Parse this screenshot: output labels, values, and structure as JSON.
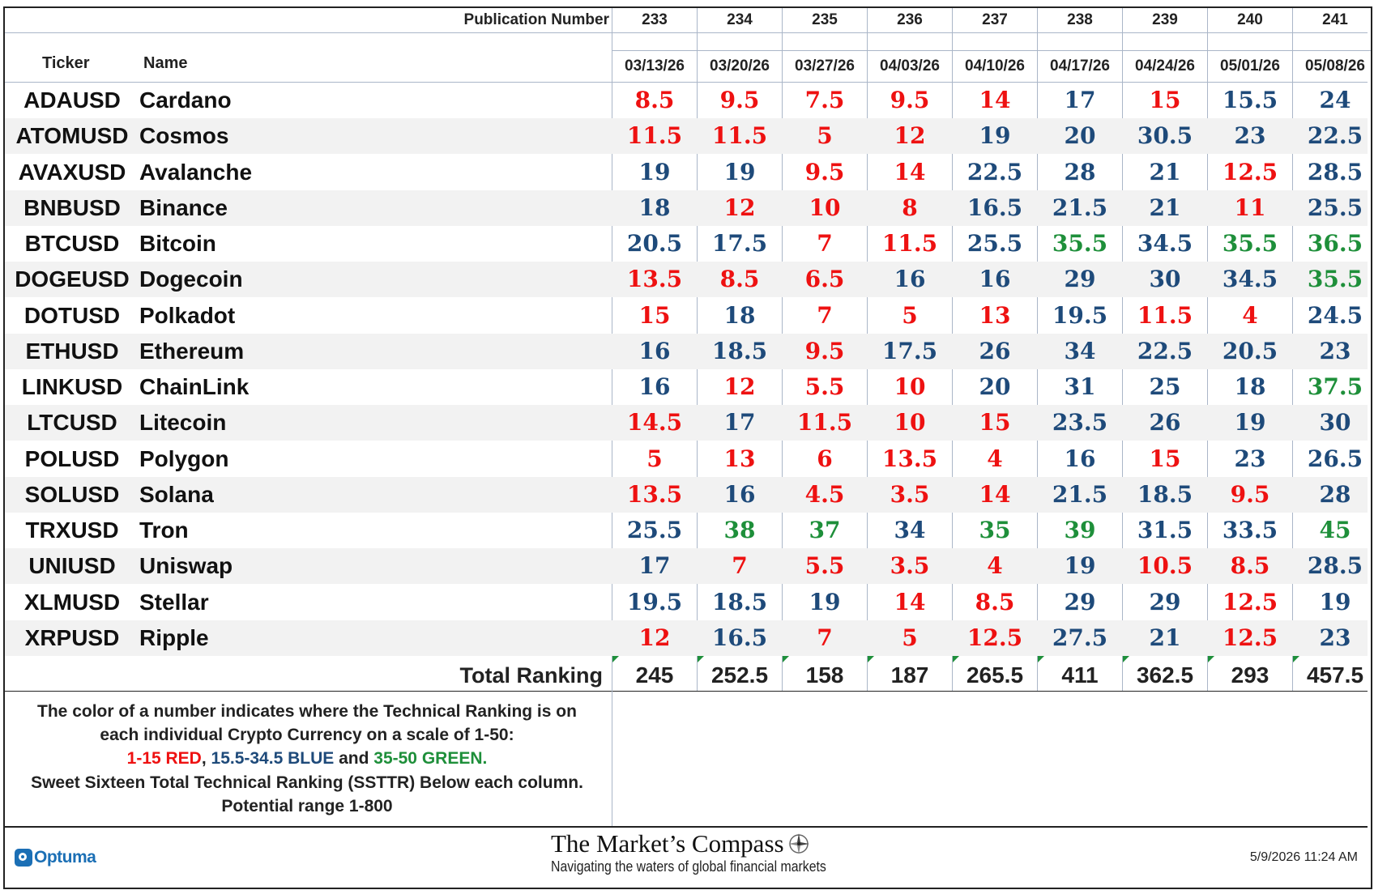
{
  "header": {
    "publication_label": "Publication Number",
    "ticker_label": "Ticker",
    "name_label": "Name",
    "publications": [
      "233",
      "234",
      "235",
      "236",
      "237",
      "238",
      "239",
      "240",
      "241"
    ],
    "dates": [
      "03/13/26",
      "03/20/26",
      "03/27/26",
      "04/03/26",
      "04/10/26",
      "04/17/26",
      "04/24/26",
      "05/01/26",
      "05/08/26"
    ]
  },
  "colors": {
    "red": "#ee1111",
    "blue": "#1e4a7a",
    "green": "#1e8f3a"
  },
  "rows": [
    {
      "ticker": "ADAUSD",
      "name": "Cardano",
      "values": [
        8.5,
        9.5,
        7.5,
        9.5,
        14,
        17,
        15,
        15.5,
        24
      ]
    },
    {
      "ticker": "ATOMUSD",
      "name": "Cosmos",
      "values": [
        11.5,
        11.5,
        5,
        12,
        19,
        20,
        30.5,
        23,
        22.5
      ]
    },
    {
      "ticker": "AVAXUSD",
      "name": "Avalanche",
      "values": [
        19,
        19,
        9.5,
        14,
        22.5,
        28,
        21,
        12.5,
        28.5
      ]
    },
    {
      "ticker": "BNBUSD",
      "name": "Binance",
      "values": [
        18,
        12,
        10,
        8,
        16.5,
        21.5,
        21,
        11,
        25.5
      ]
    },
    {
      "ticker": "BTCUSD",
      "name": "Bitcoin",
      "values": [
        20.5,
        17.5,
        7,
        11.5,
        25.5,
        35.5,
        34.5,
        35.5,
        36.5
      ]
    },
    {
      "ticker": "DOGEUSD",
      "name": "Dogecoin",
      "values": [
        13.5,
        8.5,
        6.5,
        16,
        16,
        29,
        30,
        34.5,
        35.5
      ]
    },
    {
      "ticker": "DOTUSD",
      "name": "Polkadot",
      "values": [
        15,
        18,
        7,
        5,
        13,
        19.5,
        11.5,
        4,
        24.5
      ]
    },
    {
      "ticker": "ETHUSD",
      "name": "Ethereum",
      "values": [
        16,
        18.5,
        9.5,
        17.5,
        26,
        34,
        22.5,
        20.5,
        23
      ]
    },
    {
      "ticker": "LINKUSD",
      "name": "ChainLink",
      "values": [
        16,
        12,
        5.5,
        10,
        20,
        31,
        25,
        18,
        37.5
      ]
    },
    {
      "ticker": "LTCUSD",
      "name": "Litecoin",
      "values": [
        14.5,
        17,
        11.5,
        10,
        15,
        23.5,
        26,
        19,
        30
      ]
    },
    {
      "ticker": "POLUSD",
      "name": "Polygon",
      "values": [
        5,
        13,
        6,
        13.5,
        4,
        16,
        15,
        23,
        26.5
      ]
    },
    {
      "ticker": "SOLUSD",
      "name": "Solana",
      "values": [
        13.5,
        16,
        4.5,
        3.5,
        14,
        21.5,
        18.5,
        9.5,
        28
      ]
    },
    {
      "ticker": "TRXUSD",
      "name": "Tron",
      "values": [
        25.5,
        38,
        37,
        34,
        35,
        39,
        31.5,
        33.5,
        45
      ]
    },
    {
      "ticker": "UNIUSD",
      "name": "Uniswap",
      "values": [
        17,
        7,
        5.5,
        3.5,
        4,
        19,
        10.5,
        8.5,
        28.5
      ]
    },
    {
      "ticker": "XLMUSD",
      "name": "Stellar",
      "values": [
        19.5,
        18.5,
        19,
        14,
        8.5,
        29,
        29,
        12.5,
        19
      ]
    },
    {
      "ticker": "XRPUSD",
      "name": "Ripple",
      "values": [
        12,
        16.5,
        7,
        5,
        12.5,
        27.5,
        21,
        12.5,
        23
      ]
    }
  ],
  "totals": {
    "label": "Total Ranking",
    "values": [
      "245",
      "252.5",
      "158",
      "187",
      "265.5",
      "411",
      "362.5",
      "293",
      "457.5"
    ]
  },
  "notes": {
    "line1": "The color of a number indicates where the Technical Ranking is on",
    "line2": "each individual Crypto Currency on a scale of 1-50:",
    "red_text": "1-15 RED",
    "sep1": ", ",
    "blue_text": "15.5-34.5 BLUE",
    "sep2": " and ",
    "green_text": "35-50 GREEN.",
    "line4": "Sweet Sixteen Total Technical Ranking (SSTTR) Below each column.",
    "line5": "Potential range 1-800"
  },
  "footer": {
    "optuma_logo": "Optuma",
    "compass_title": "The Market’s Compass",
    "compass_tagline": "Navigating the waters of global financial markets",
    "timestamp": "5/9/2026 11:24 AM",
    "compass_icon": "compass-rose-icon"
  }
}
